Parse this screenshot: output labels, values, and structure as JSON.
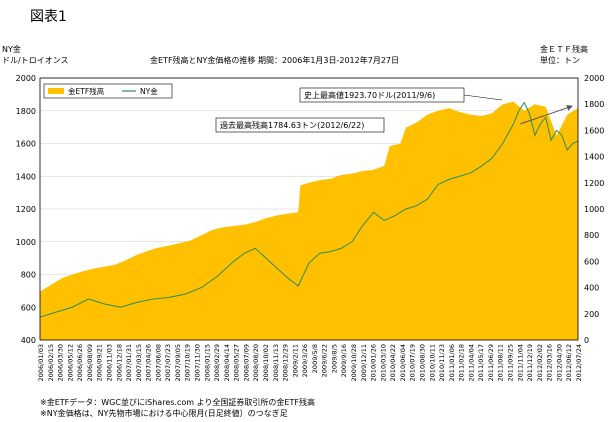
{
  "figure_label": "図表1",
  "chart_data": {
    "type": "area+line",
    "title": "金ETF残高とNY金価格の推移 期間：2006年1月3日-2012年7月27日",
    "left_axis_label": [
      "NY金",
      "ドル/トロイオンス"
    ],
    "right_axis_label": [
      "金ＥＴＦ残高",
      "単位：トン"
    ],
    "left_axis": {
      "min": 400,
      "max": 2000,
      "step": 200
    },
    "right_axis": {
      "min": 0,
      "max": 2000,
      "step": 200
    },
    "left_ticks": [
      "400",
      "600",
      "800",
      "1000",
      "1200",
      "1400",
      "1600",
      "1800",
      "2000"
    ],
    "right_ticks": [
      "0",
      "200",
      "400",
      "600",
      "800",
      "1000",
      "1200",
      "1400",
      "1600",
      "1800",
      "2000"
    ],
    "legend": {
      "placement": "top-left",
      "items": [
        "金ETF残高",
        "NY金"
      ]
    },
    "x_labels": [
      "2006/01/03",
      "2006/02/15",
      "2006/03/30",
      "2006/05/12",
      "2006/06/26",
      "2006/08/09",
      "2006/09/21",
      "2006/11/03",
      "2006/12/18",
      "2007/01/31",
      "2007/03/15",
      "2007/04/26",
      "2007/06/08",
      "2007/07/23",
      "2007/09/05",
      "2007/10/19",
      "2007/11/30",
      "2008/01/15",
      "2008/02/29",
      "2008/04/14",
      "2008/05/27",
      "2008/07/09",
      "2008/08/20",
      "2008/10/02",
      "2008/11/13",
      "2008/12/29",
      "2009/2/11",
      "2009/3/26",
      "2009/5/8",
      "2009/6/22",
      "2009/8/5",
      "2009/9/16",
      "2009/10/28",
      "2009/12/11",
      "2010/01/26",
      "2010/03/10",
      "2010/04/22",
      "2010/06/04",
      "2010/07/19",
      "2010/08/30",
      "2010/10/11",
      "2010/11/23",
      "2011/01/06",
      "2011/02/18",
      "2011/04/04",
      "2011/05/17",
      "2011/06/29",
      "2011/08/11",
      "2011/09/25",
      "2011/11/04",
      "2011/12/19",
      "2012/02/02",
      "2012/03/16",
      "2012/04/30",
      "2012/06/12",
      "2012/07/24"
    ],
    "etf_series": {
      "name": "金ETF残高",
      "color": "#FFC000",
      "t": [
        0,
        0.02,
        0.04,
        0.06,
        0.08,
        0.1,
        0.12,
        0.14,
        0.16,
        0.18,
        0.2,
        0.22,
        0.24,
        0.26,
        0.28,
        0.3,
        0.32,
        0.34,
        0.36,
        0.38,
        0.4,
        0.42,
        0.44,
        0.46,
        0.48,
        0.484,
        0.5,
        0.52,
        0.54,
        0.56,
        0.58,
        0.6,
        0.62,
        0.64,
        0.65,
        0.67,
        0.68,
        0.7,
        0.72,
        0.74,
        0.76,
        0.78,
        0.8,
        0.82,
        0.84,
        0.86,
        0.88,
        0.9,
        0.92,
        0.94,
        0.96,
        0.98,
        1.0
      ],
      "v": [
        370,
        420,
        470,
        500,
        525,
        545,
        560,
        575,
        610,
        650,
        680,
        705,
        720,
        740,
        760,
        800,
        840,
        860,
        870,
        880,
        900,
        930,
        950,
        965,
        975,
        1180,
        1200,
        1220,
        1230,
        1260,
        1270,
        1290,
        1300,
        1330,
        1480,
        1500,
        1620,
        1660,
        1720,
        1750,
        1770,
        1740,
        1720,
        1710,
        1730,
        1800,
        1820,
        1750,
        1800,
        1780,
        1560,
        1720,
        1770
      ]
    },
    "price_series": {
      "name": "NY金",
      "color": "#2E8B57",
      "t": [
        0,
        0.03,
        0.06,
        0.09,
        0.12,
        0.15,
        0.18,
        0.21,
        0.24,
        0.27,
        0.3,
        0.33,
        0.36,
        0.38,
        0.4,
        0.42,
        0.44,
        0.46,
        0.48,
        0.5,
        0.52,
        0.54,
        0.56,
        0.58,
        0.6,
        0.62,
        0.64,
        0.66,
        0.68,
        0.7,
        0.72,
        0.74,
        0.76,
        0.78,
        0.8,
        0.82,
        0.84,
        0.86,
        0.88,
        0.89,
        0.9,
        0.91,
        0.92,
        0.93,
        0.94,
        0.95,
        0.96,
        0.97,
        0.98,
        0.99,
        1.0
      ],
      "v": [
        540,
        570,
        600,
        650,
        620,
        600,
        630,
        650,
        660,
        680,
        720,
        790,
        880,
        930,
        960,
        900,
        840,
        780,
        730,
        870,
        930,
        940,
        960,
        1000,
        1100,
        1180,
        1130,
        1160,
        1200,
        1220,
        1260,
        1350,
        1380,
        1400,
        1420,
        1460,
        1510,
        1600,
        1720,
        1800,
        1850,
        1780,
        1650,
        1720,
        1760,
        1620,
        1680,
        1650,
        1560,
        1600,
        1615
      ]
    },
    "trend_line": {
      "from": [
        0.893,
        1650
      ],
      "to": [
        1.0,
        1784.63
      ],
      "unit_axis": "right"
    },
    "annotations": {
      "ath_price": "史上最高値1923.70ドル(2011/9/6)",
      "ath_etf": "過去最高残高1784.63トン(2012/6/22)"
    }
  },
  "notes": [
    "※金ETFデータ：WGC並びにiShares.com より全国証券取引所の金ETF残高",
    "※NY金価格は、NY先物市場における中心限月(日足終値）のつなぎ足"
  ]
}
